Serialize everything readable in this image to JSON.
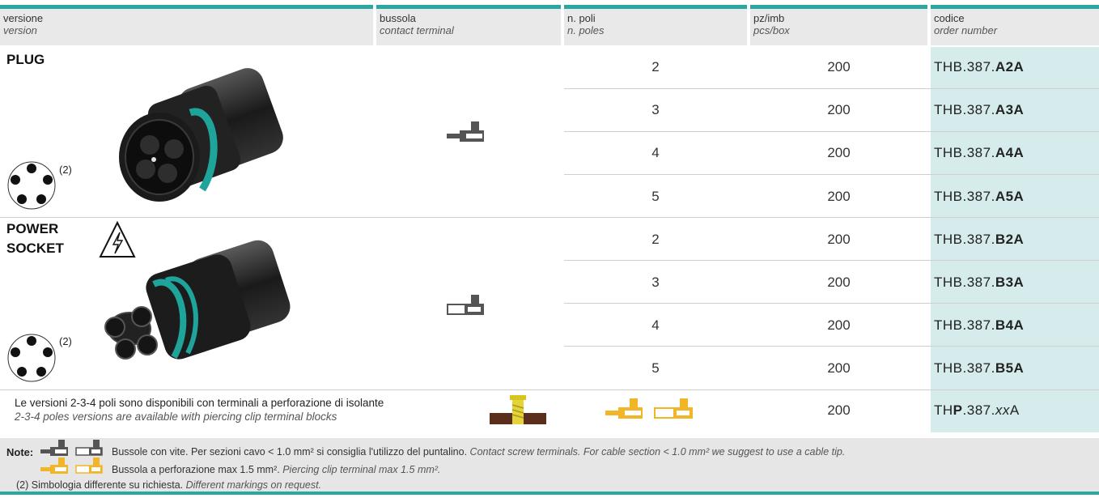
{
  "header": {
    "version_it": "versione",
    "version_en": "version",
    "terminal_it": "bussola",
    "terminal_en": "contact terminal",
    "poles_it": "n. poli",
    "poles_en": "n. poles",
    "pcs_it": "pz/imb",
    "pcs_en": "pcs/box",
    "code_it": "codice",
    "code_en": "order number"
  },
  "plug": {
    "title": "PLUG",
    "pin_label": "(2)",
    "pins": [
      "1",
      "2",
      "3",
      "4",
      "5"
    ],
    "rows": [
      {
        "poles": "2",
        "pcs": "200",
        "code_prefix": "THB.387.",
        "code_suffix": "A2A"
      },
      {
        "poles": "3",
        "pcs": "200",
        "code_prefix": "THB.387.",
        "code_suffix": "A3A"
      },
      {
        "poles": "4",
        "pcs": "200",
        "code_prefix": "THB.387.",
        "code_suffix": "A4A"
      },
      {
        "poles": "5",
        "pcs": "200",
        "code_prefix": "THB.387.",
        "code_suffix": "A5A"
      }
    ]
  },
  "socket": {
    "title_line1": "POWER",
    "title_line2": "SOCKET",
    "pin_label": "(2)",
    "pins": [
      "1",
      "2",
      "3",
      "4",
      "5"
    ],
    "rows": [
      {
        "poles": "2",
        "pcs": "200",
        "code_prefix": "THB.387.",
        "code_suffix": "B2A"
      },
      {
        "poles": "3",
        "pcs": "200",
        "code_prefix": "THB.387.",
        "code_suffix": "B3A"
      },
      {
        "poles": "4",
        "pcs": "200",
        "code_prefix": "THB.387.",
        "code_suffix": "B4A"
      },
      {
        "poles": "5",
        "pcs": "200",
        "code_prefix": "THB.387.",
        "code_suffix": "B5A"
      }
    ]
  },
  "piercing": {
    "text_it": "Le versioni 2-3-4 poli sono disponibili con terminali a perforazione di isolante",
    "text_en": "2-3-4 poles versions are available with piercing clip terminal blocks",
    "pcs": "200",
    "code_a": "TH",
    "code_b": "P",
    "code_c": ".387.",
    "code_d": "xx",
    "code_e": "A"
  },
  "notes": {
    "label": "Note:",
    "line1_it": "Bussole con vite. Per sezioni cavo < 1.0 mm² si consiglia l'utilizzo del puntalino.",
    "line1_en": "Contact screw terminals. For cable section < 1.0 mm² we suggest to use a cable tip.",
    "line2_it": "Bussola a perforazione max 1.5 mm².",
    "line2_en": "Piercing clip terminal max 1.5 mm².",
    "line3_it": "(2) Simbologia differente su richiesta.",
    "line3_en": "Different markings on request."
  },
  "colors": {
    "accent": "#2aa7a0",
    "code_bg": "#d6ebec",
    "header_bg": "#e9e9e9",
    "terminal_grey": "#555555",
    "terminal_yellow": "#f2b527"
  }
}
